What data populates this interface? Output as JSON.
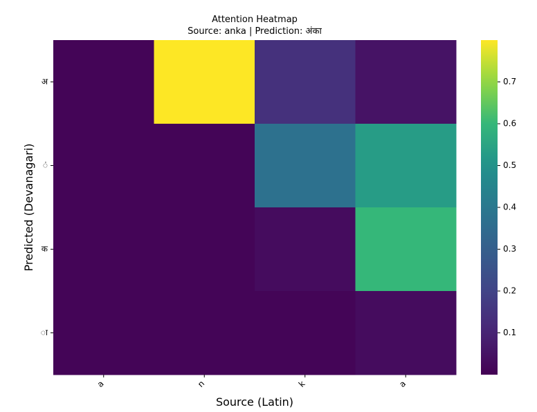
{
  "chart_data": {
    "type": "heatmap",
    "title": "Attention Heatmap",
    "subtitle": "Source: anka | Prediction: अंका",
    "xlabel": "Source (Latin)",
    "ylabel": "Predicted (Devanagari)",
    "x_categories": [
      "a",
      "n",
      "k",
      "a"
    ],
    "y_categories": [
      "अ",
      "ं",
      "क",
      "ा"
    ],
    "values": [
      [
        0.01,
        0.8,
        0.14,
        0.05
      ],
      [
        0.01,
        0.01,
        0.37,
        0.53
      ],
      [
        0.01,
        0.01,
        0.03,
        0.6
      ],
      [
        0.01,
        0.01,
        0.01,
        0.03
      ]
    ],
    "colorscale": "viridis",
    "colorbar": {
      "min": 0.0,
      "max": 0.8,
      "ticks": [
        0.1,
        0.2,
        0.3,
        0.4,
        0.5,
        0.6,
        0.7
      ]
    }
  }
}
